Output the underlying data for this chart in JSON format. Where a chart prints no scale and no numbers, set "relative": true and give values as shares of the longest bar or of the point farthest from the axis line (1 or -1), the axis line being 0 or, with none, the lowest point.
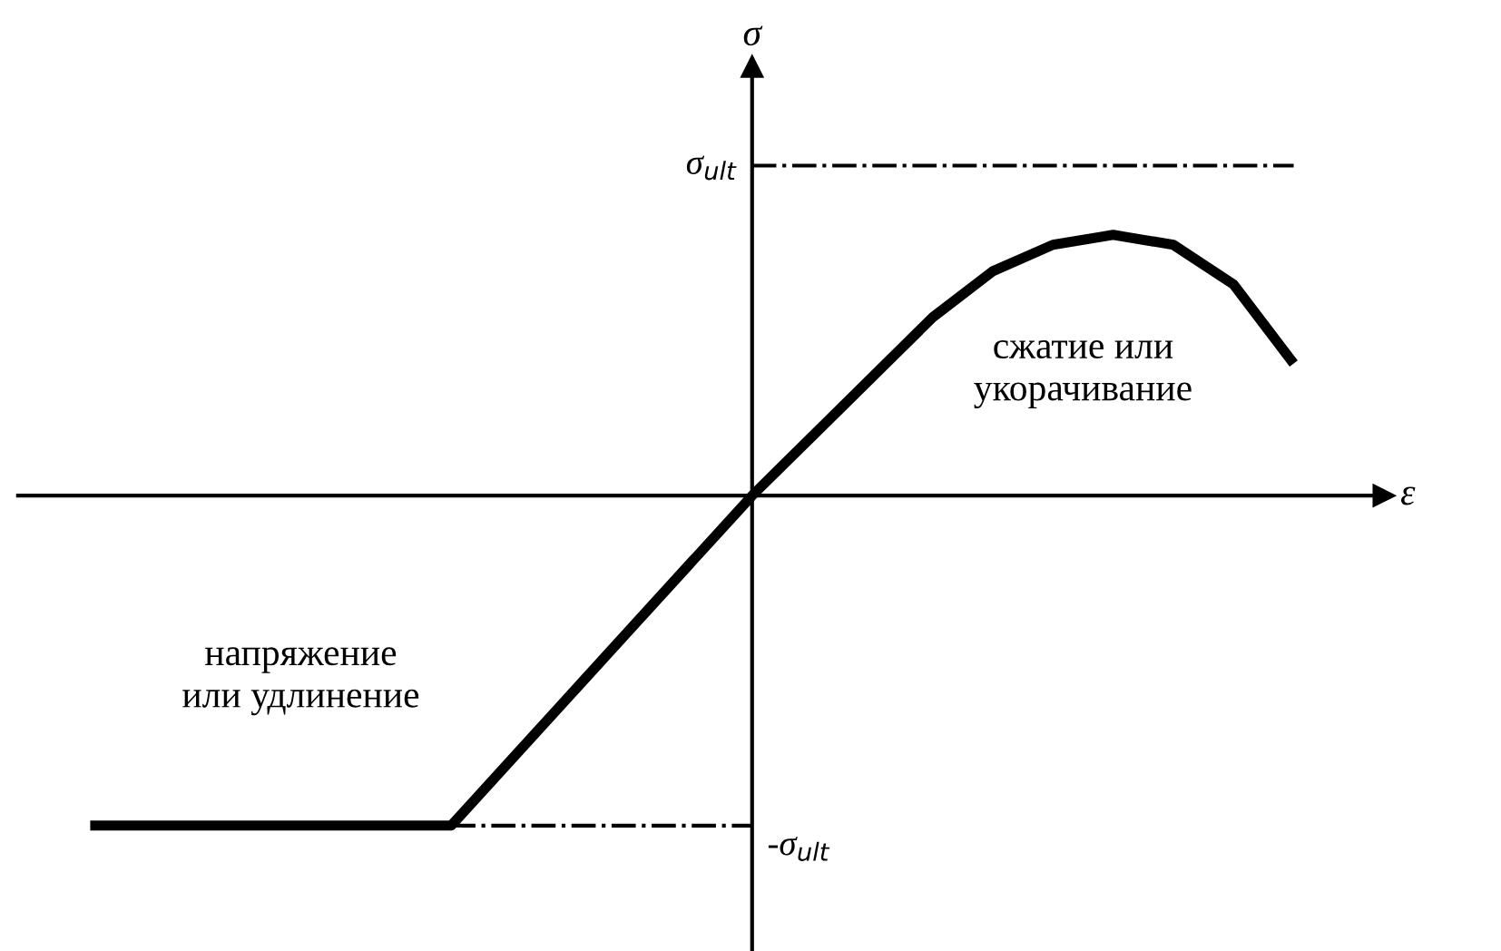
{
  "chart_data": {
    "type": "line",
    "relative": true,
    "xlabel": "ε",
    "categories": [
      null,
      null,
      null,
      null,
      null,
      null,
      null,
      null,
      null,
      null,
      null,
      null,
      null,
      null,
      null,
      null,
      null,
      null,
      null,
      null,
      null
    ],
    "series": [
      {
        "color": "#000000",
        "values": [
          -1,
          -1,
          -1,
          -1,
          -1,
          -1,
          -1,
          -0.8,
          -0.6,
          -0.4,
          -0.2,
          0,
          0.18,
          0.36,
          0.54,
          0.68,
          0.76,
          0.79,
          0.76,
          0.64,
          0.4
        ]
      }
    ],
    "ref_lines": [
      {
        "axis": "y",
        "value": 1,
        "label": "σ$_{ult}$",
        "line_style": "dashdot",
        "color": "#000000"
      },
      {
        "axis": "y",
        "value": -1,
        "label": "-σ$_{ult}$",
        "line_style": "dashdot",
        "color": "#000000"
      }
    ],
    "annotations": [
      "сжатие или\nукорачивание",
      "напряжение\nили удлинение",
      "σ"
    ],
    "marker": "none",
    "line_style": "solid"
  }
}
